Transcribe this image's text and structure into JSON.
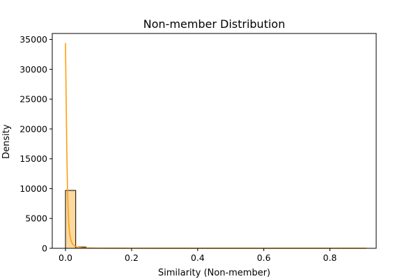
{
  "chart_data": {
    "type": "histogram",
    "title": "Non-member Distribution",
    "xlabel": "Similarity (Non-member)",
    "ylabel": "Density",
    "xlim": [
      -0.04,
      0.94
    ],
    "ylim": [
      0,
      36000
    ],
    "x_ticks": [
      0.0,
      0.2,
      0.4,
      0.6,
      0.8
    ],
    "x_tick_labels": [
      "0.0",
      "0.2",
      "0.4",
      "0.6",
      "0.8"
    ],
    "y_ticks": [
      0,
      5000,
      10000,
      15000,
      20000,
      25000,
      30000,
      35000
    ],
    "y_tick_labels": [
      "0",
      "5000",
      "10000",
      "15000",
      "20000",
      "25000",
      "30000",
      "35000"
    ],
    "grid": false,
    "colors": {
      "bar_fill": "#fcd9a0",
      "bar_edge": "#000000",
      "kde_line": "#ff9f0a"
    },
    "bins": [
      {
        "x0": 0.0,
        "x1": 0.031,
        "density": 9700
      },
      {
        "x0": 0.031,
        "x1": 0.062,
        "density": 220
      },
      {
        "x0": 0.062,
        "x1": 0.093,
        "density": 35
      }
    ],
    "kde": {
      "x": [
        0.0,
        0.002,
        0.004,
        0.006,
        0.008,
        0.01,
        0.012,
        0.015,
        0.018,
        0.021,
        0.025,
        0.03,
        0.035,
        0.04,
        0.05,
        0.06,
        0.07,
        0.08,
        0.1,
        0.15,
        0.2,
        0.3,
        0.4,
        0.5,
        0.6,
        0.7,
        0.8,
        0.91
      ],
      "y": [
        34400,
        25000,
        16500,
        10200,
        6500,
        4200,
        2800,
        1700,
        1100,
        750,
        500,
        320,
        220,
        160,
        100,
        70,
        50,
        40,
        30,
        20,
        15,
        12,
        10,
        8,
        6,
        5,
        4,
        3
      ]
    }
  }
}
